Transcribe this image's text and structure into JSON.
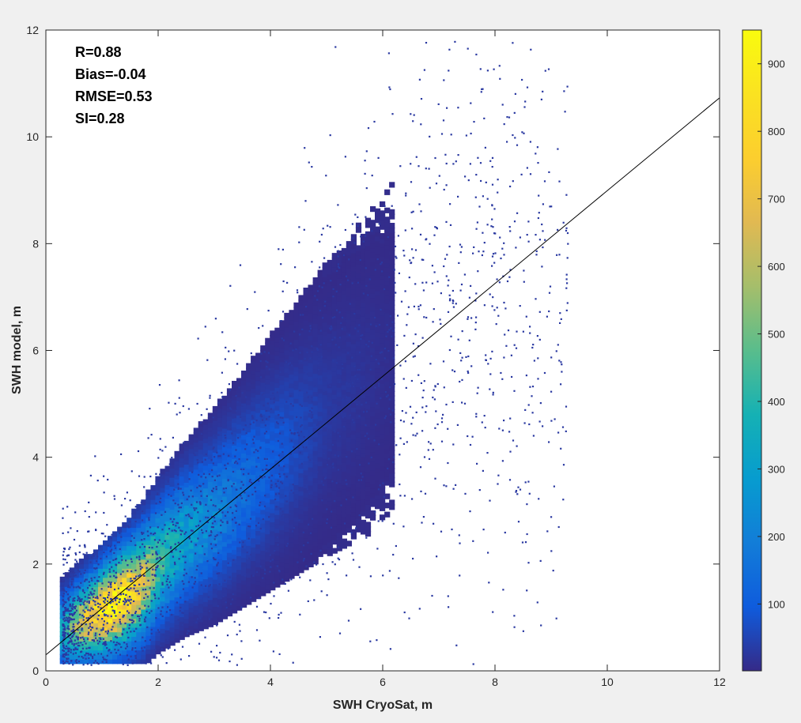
{
  "chart_data": {
    "type": "heatmap",
    "subtype": "density-scatter",
    "xlabel": "SWH CryoSat, m",
    "ylabel": "SWH model, m",
    "xlim": [
      0,
      12
    ],
    "ylim": [
      0,
      12
    ],
    "xticks": [
      "0",
      "2",
      "4",
      "6",
      "8",
      "10",
      "12"
    ],
    "yticks": [
      "0",
      "2",
      "4",
      "6",
      "8",
      "10",
      "12"
    ],
    "grid": false,
    "stats": [
      {
        "id": "r",
        "text": "R=0.88"
      },
      {
        "id": "bias",
        "text": "Bias=-0.04"
      },
      {
        "id": "rmse",
        "text": "RMSE=0.53"
      },
      {
        "id": "si",
        "text": "SI=0.28"
      }
    ],
    "fit_line": {
      "x": [
        0,
        12
      ],
      "y": [
        0.3,
        10.73
      ]
    },
    "colorbar": {
      "colormap": "parula",
      "range": [
        1,
        950
      ],
      "ticks": [
        "100",
        "200",
        "300",
        "400",
        "500",
        "600",
        "700",
        "800",
        "900"
      ],
      "tick_values": [
        100,
        200,
        300,
        400,
        500,
        600,
        700,
        800,
        900
      ]
    },
    "density_core": {
      "peak_count": 900,
      "peak_location": {
        "x": 1.2,
        "y": 1.2
      },
      "ridge": [
        {
          "x": 0.3,
          "y": 0.75,
          "count": 350
        },
        {
          "x": 0.6,
          "y": 0.9,
          "count": 600
        },
        {
          "x": 1.0,
          "y": 1.1,
          "count": 870
        },
        {
          "x": 1.3,
          "y": 1.3,
          "count": 900
        },
        {
          "x": 1.7,
          "y": 1.6,
          "count": 700
        },
        {
          "x": 2.0,
          "y": 2.0,
          "count": 450
        },
        {
          "x": 2.5,
          "y": 2.5,
          "count": 300
        },
        {
          "x": 3.0,
          "y": 2.9,
          "count": 220
        },
        {
          "x": 3.5,
          "y": 3.4,
          "count": 150
        },
        {
          "x": 4.0,
          "y": 3.9,
          "count": 100
        },
        {
          "x": 4.5,
          "y": 4.4,
          "count": 60
        },
        {
          "x": 5.0,
          "y": 4.9,
          "count": 30
        },
        {
          "x": 6.0,
          "y": 5.8,
          "count": 10
        },
        {
          "x": 7.0,
          "y": 6.8,
          "count": 3
        }
      ]
    }
  }
}
